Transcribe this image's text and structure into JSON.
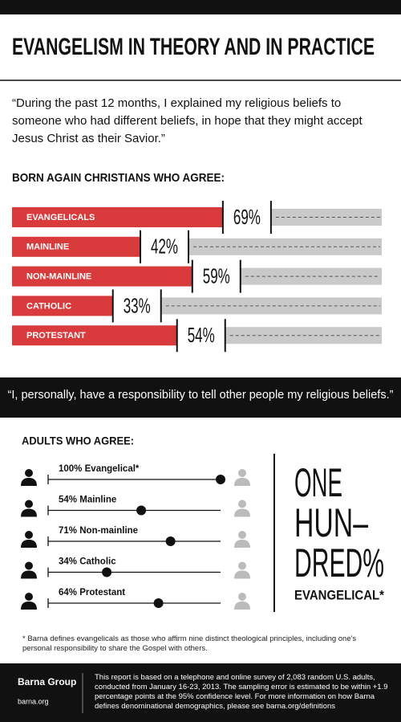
{
  "title": "EVANGELISM IN THEORY AND IN PRACTICE",
  "quote_1": "“During the past 12 months, I explained my religious beliefs to someone who had different beliefs, in hope that they might accept Jesus Christ as their Savior.”",
  "chart_data": [
    {
      "type": "bar",
      "title": "BORN AGAIN CHRISTIANS WHO AGREE:",
      "categories": [
        "EVANGELICALS",
        "MAINLINE",
        "NON-MAINLINE",
        "CATHOLIC",
        "PROTESTANT"
      ],
      "values": [
        69,
        42,
        59,
        33,
        54
      ],
      "value_labels": [
        "69%",
        "42%",
        "59%",
        "33%",
        "54%"
      ],
      "color": "#d93a3c",
      "remainder_color": "#c9c9c9",
      "xlim": [
        0,
        100
      ]
    },
    {
      "type": "dot",
      "title": "ADULTS WHO AGREE:",
      "categories": [
        "Evangelical*",
        "Mainline",
        "Non-mainline",
        "Catholic",
        "Protestant"
      ],
      "values": [
        100,
        54,
        71,
        34,
        64
      ],
      "value_labels": [
        "100%",
        "54%",
        "71%",
        "34%",
        "64%"
      ],
      "color": "#111111",
      "xlim": [
        0,
        100
      ]
    }
  ],
  "quote_2": "“I, personally, have a responsibility to tell other people my religious beliefs.”",
  "callout": {
    "lines": [
      "ONE",
      "HUN–",
      "DRED%",
      "EVANGELICAL*"
    ]
  },
  "footnote": "* Barna defines evangelicals as those who affirm nine distinct theological principles, including one's personal responsibility to share the Gospel with others.",
  "footer": {
    "brand": "Barna Group",
    "url": "barna.org",
    "note": "This report is based on a telephone and online survey of 2,083 random U.S. adults, conducted from January 16-23, 2013. The sampling error is estimated to be within +1.9 percentage points at the 95% confidence level. For more information on how Barna defines denominational demographics, please see barna.org/definitions"
  }
}
